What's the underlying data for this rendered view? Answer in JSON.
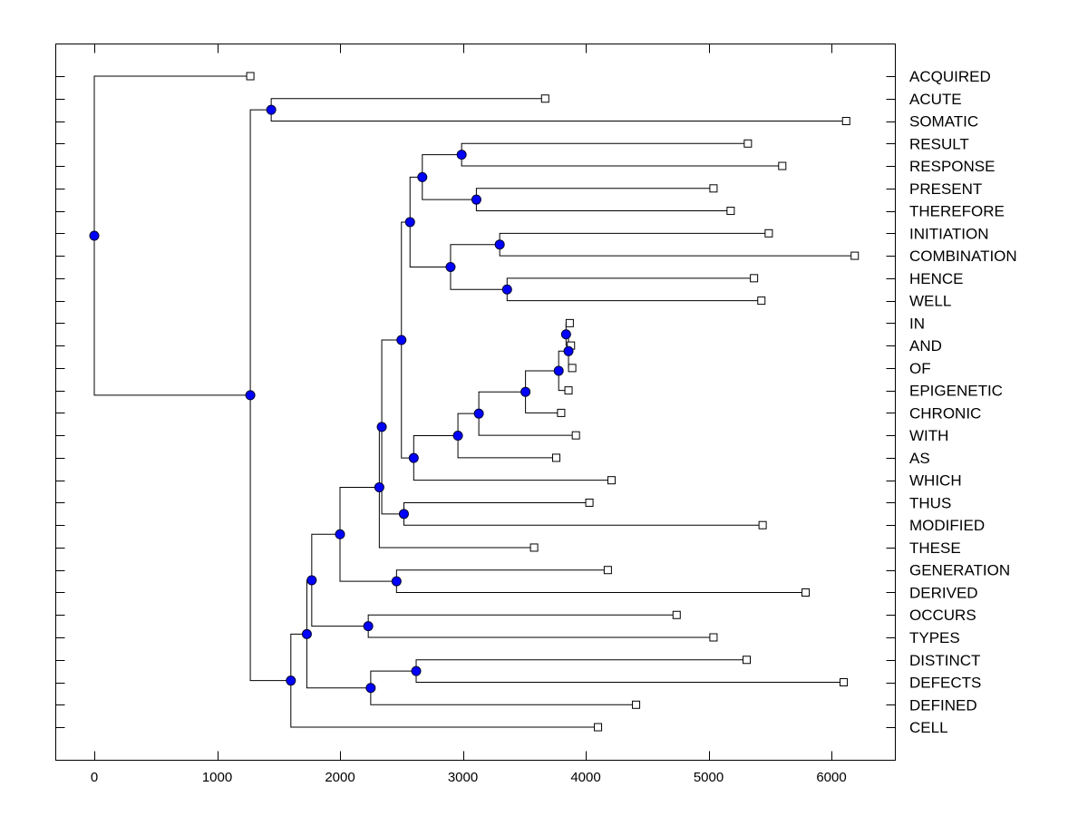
{
  "chart_data": {
    "type": "dendrogram",
    "title": "",
    "xlabel": "",
    "ylabel": "",
    "xlim": [
      -320,
      6520
    ],
    "xticks": [
      0,
      1000,
      2000,
      3000,
      4000,
      5000,
      6000
    ],
    "xtick_labels": [
      "0",
      "1000",
      "2000",
      "3000",
      "4000",
      "5000",
      "6000"
    ],
    "colors": {
      "node": "#0000ff",
      "node_stroke": "#000033",
      "line": "#000000",
      "leaf_fill": "#ffffff"
    },
    "leaves": [
      {
        "label": "ACQUIRED",
        "value": 1270
      },
      {
        "label": "ACUTE",
        "value": 3670
      },
      {
        "label": "SOMATIC",
        "value": 6120
      },
      {
        "label": "RESULT",
        "value": 5320
      },
      {
        "label": "RESPONSE",
        "value": 5600
      },
      {
        "label": "PRESENT",
        "value": 5040
      },
      {
        "label": "THEREFORE",
        "value": 5180
      },
      {
        "label": "INITIATION",
        "value": 5490
      },
      {
        "label": "COMBINATION",
        "value": 6190
      },
      {
        "label": "HENCE",
        "value": 5370
      },
      {
        "label": "WELL",
        "value": 5430
      },
      {
        "label": "IN",
        "value": 3870
      },
      {
        "label": "AND",
        "value": 3880
      },
      {
        "label": "OF",
        "value": 3890
      },
      {
        "label": "EPIGENETIC",
        "value": 3860
      },
      {
        "label": "CHRONIC",
        "value": 3800
      },
      {
        "label": "WITH",
        "value": 3920
      },
      {
        "label": "AS",
        "value": 3760
      },
      {
        "label": "WHICH",
        "value": 4210
      },
      {
        "label": "THUS",
        "value": 4030
      },
      {
        "label": "MODIFIED",
        "value": 5440
      },
      {
        "label": "THESE",
        "value": 3580
      },
      {
        "label": "GENERATION",
        "value": 4180
      },
      {
        "label": "DERIVED",
        "value": 5790
      },
      {
        "label": "OCCURS",
        "value": 4740
      },
      {
        "label": "TYPES",
        "value": 5040
      },
      {
        "label": "DISTINCT",
        "value": 5310
      },
      {
        "label": "DEFECTS",
        "value": 6100
      },
      {
        "label": "DEFINED",
        "value": 4410
      },
      {
        "label": "CELL",
        "value": 4100
      }
    ],
    "merges": [
      {
        "id": "n_in_and",
        "height": 3840,
        "children": [
          "IN",
          "AND"
        ]
      },
      {
        "id": "n_in_and_of",
        "height": 3860,
        "children": [
          "n_in_and",
          "OF"
        ]
      },
      {
        "id": "n_ep",
        "height": 3780,
        "children": [
          "n_in_and_of",
          "EPIGENETIC"
        ]
      },
      {
        "id": "n_chronic",
        "height": 3510,
        "children": [
          "n_ep",
          "CHRONIC"
        ]
      },
      {
        "id": "n_with",
        "height": 3130,
        "children": [
          "n_chronic",
          "WITH"
        ]
      },
      {
        "id": "n_as",
        "height": 2960,
        "children": [
          "n_with",
          "AS"
        ]
      },
      {
        "id": "n_which",
        "height": 2600,
        "children": [
          "n_as",
          "WHICH"
        ]
      },
      {
        "id": "n_result_response",
        "height": 2990,
        "children": [
          "RESULT",
          "RESPONSE"
        ]
      },
      {
        "id": "n_present_therefore",
        "height": 3110,
        "children": [
          "PRESENT",
          "THEREFORE"
        ]
      },
      {
        "id": "n_r_p",
        "height": 2670,
        "children": [
          "n_result_response",
          "n_present_therefore"
        ]
      },
      {
        "id": "n_init_comb",
        "height": 3300,
        "children": [
          "INITIATION",
          "COMBINATION"
        ]
      },
      {
        "id": "n_hence_well",
        "height": 3360,
        "children": [
          "HENCE",
          "WELL"
        ]
      },
      {
        "id": "n_i_h",
        "height": 2900,
        "children": [
          "n_init_comb",
          "n_hence_well"
        ]
      },
      {
        "id": "n_upper",
        "height": 2570,
        "children": [
          "n_r_p",
          "n_i_h"
        ]
      },
      {
        "id": "n_big",
        "height": 2500,
        "children": [
          "n_upper",
          "n_which"
        ]
      },
      {
        "id": "n_thus_modified",
        "height": 2520,
        "children": [
          "THUS",
          "MODIFIED"
        ]
      },
      {
        "id": "n_big_thus",
        "height": 2340,
        "children": [
          "n_big",
          "n_thus_modified"
        ]
      },
      {
        "id": "n_these",
        "height": 2320,
        "children": [
          "n_big_thus",
          "THESE"
        ]
      },
      {
        "id": "n_gen_derived",
        "height": 2460,
        "children": [
          "GENERATION",
          "DERIVED"
        ]
      },
      {
        "id": "n_these_gen",
        "height": 2000,
        "children": [
          "n_these",
          "n_gen_derived"
        ]
      },
      {
        "id": "n_occurs_types",
        "height": 2230,
        "children": [
          "OCCURS",
          "TYPES"
        ]
      },
      {
        "id": "n_mid",
        "height": 1770,
        "children": [
          "n_these_gen",
          "n_occurs_types"
        ]
      },
      {
        "id": "n_distinct_defects",
        "height": 2620,
        "children": [
          "DISTINCT",
          "DEFECTS"
        ]
      },
      {
        "id": "n_dd_defined",
        "height": 2250,
        "children": [
          "n_distinct_defects",
          "DEFINED"
        ]
      },
      {
        "id": "n_low",
        "height": 1730,
        "children": [
          "n_mid",
          "n_dd_defined"
        ]
      },
      {
        "id": "n_cell",
        "height": 1600,
        "children": [
          "n_low",
          "CELL"
        ]
      },
      {
        "id": "n_acute_somatic",
        "height": 1440,
        "children": [
          "ACUTE",
          "SOMATIC"
        ]
      },
      {
        "id": "n_main",
        "height": 1270,
        "children": [
          "n_acute_somatic",
          "n_cell"
        ]
      },
      {
        "id": "n_root",
        "height": 0,
        "children": [
          "ACQUIRED",
          "n_main"
        ]
      }
    ]
  }
}
